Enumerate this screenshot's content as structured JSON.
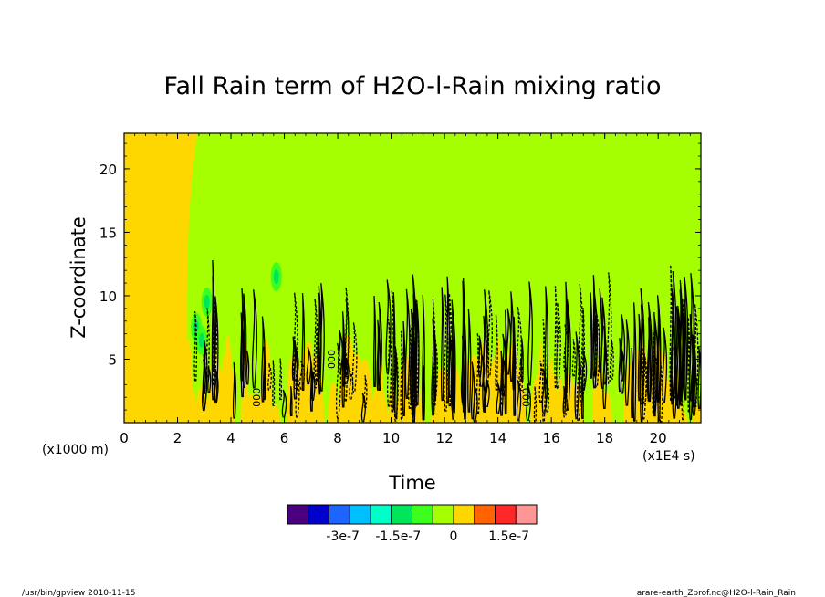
{
  "chart_data": {
    "type": "heatmap",
    "title": "Fall Rain term of H2O-l-Rain mixing ratio",
    "xlabel": "Time",
    "ylabel": "Z-coordinate",
    "x_unit_note": "(x1E4 s)",
    "y_unit_note": "(x1000 m)",
    "xlim": [
      0,
      21.6
    ],
    "ylim": [
      0,
      22.8
    ],
    "x_ticks": [
      0,
      2,
      4,
      6,
      8,
      10,
      12,
      14,
      16,
      18,
      20
    ],
    "x_tick_labels": [
      "0",
      "2",
      "4",
      "6",
      "8",
      "10",
      "12",
      "14",
      "16",
      "18",
      "20"
    ],
    "y_ticks": [
      5,
      10,
      15,
      20
    ],
    "y_tick_labels": [
      "5",
      "10",
      "15",
      "20"
    ],
    "background_level_color": "#a6ff00",
    "regions": [
      {
        "kind": "spinup",
        "x": [
          0,
          2.8
        ],
        "y": [
          0,
          22.8
        ],
        "color": "#ffd700"
      },
      {
        "kind": "convective_layer",
        "x": [
          2.4,
          21.6
        ],
        "y": [
          0,
          12.5
        ],
        "color": "#ffd700"
      }
    ],
    "contour_labels": [
      {
        "text": "000",
        "x": 5.1,
        "y": 2.0
      },
      {
        "text": "000",
        "x": 7.9,
        "y": 5.0
      },
      {
        "text": "000",
        "x": 15.2,
        "y": 2.0
      }
    ],
    "colorbar": {
      "colors": [
        "#4b0082",
        "#0000cd",
        "#1e64ff",
        "#00bfff",
        "#00ffc8",
        "#00e65a",
        "#3cff1e",
        "#a6ff00",
        "#ffd700",
        "#ff6400",
        "#ff2828",
        "#ff9696"
      ],
      "labels": [
        "-3e-7",
        "-1.5e-7",
        "0",
        "1.5e-7"
      ],
      "label_values": [
        -3e-07,
        -1.5e-07,
        0,
        1.5e-07
      ],
      "min": -4.5e-07,
      "max": 2.25e-07,
      "step": 7.5e-08
    }
  },
  "footer": {
    "left": "/usr/bin/gpview   2010-11-15",
    "right": "arare-earth_Zprof.nc@H2O-l-Rain_Rain"
  }
}
